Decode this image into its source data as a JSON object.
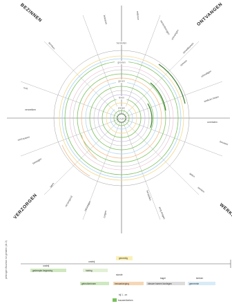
{
  "quadrants": {
    "top_left": "BEZINNEN",
    "top_right": "ONTVANGEN",
    "bottom_left": "VERZORGEN",
    "bottom_right": "WERKEN"
  },
  "ring_labels": [
    "herstellen",
    "groeien",
    "geven",
    "leven",
    "zorgen"
  ],
  "center_label": "zorgen",
  "perimeter_words": [
    "bewaren",
    "ordenen",
    "samenbrengen",
    "ontvangen",
    "verwelkomen",
    "spreken",
    "uitnodigen",
    "welkom heten",
    "overlaten",
    "rust",
    "openen",
    "werken",
    "bouwen",
    "delen",
    "herstellen",
    "vertrouwen",
    "laten",
    "zorgen",
    "verzorgen",
    "zorg dragen",
    "bewegen",
    "verwelken",
    "verzorgend"
  ],
  "timeline": {
    "axis_title": "pelvingen Bourbon tot gemeen (Ar-3)",
    "groups": [
      {
        "title": "oosteij",
        "item": "gedempte begraving"
      },
      {
        "title": "oosteij",
        "item": "hobbig"
      },
      {
        "title": "gesnedig",
        "item": "gebruikerinnen"
      },
      {
        "title": "stonde",
        "item": "bewaartanging"
      },
      {
        "title": "bagel",
        "item": "nieuwe bomen bontegen"
      },
      {
        "title": "kierken",
        "item": "gemeente"
      }
    ],
    "footer": "bij 1 - on",
    "legend": "bouwen/kerken"
  },
  "colors": {
    "green": "#79c05b",
    "dark_green": "#3a7d2f",
    "light_blue": "#a8d3ef",
    "yellow": "#f2d98b",
    "orange": "#f3b77e",
    "pink": "#e9b7cf",
    "lavender": "#c7b8e0",
    "grey_line": "#9e9e9e",
    "axis": "#555555"
  }
}
